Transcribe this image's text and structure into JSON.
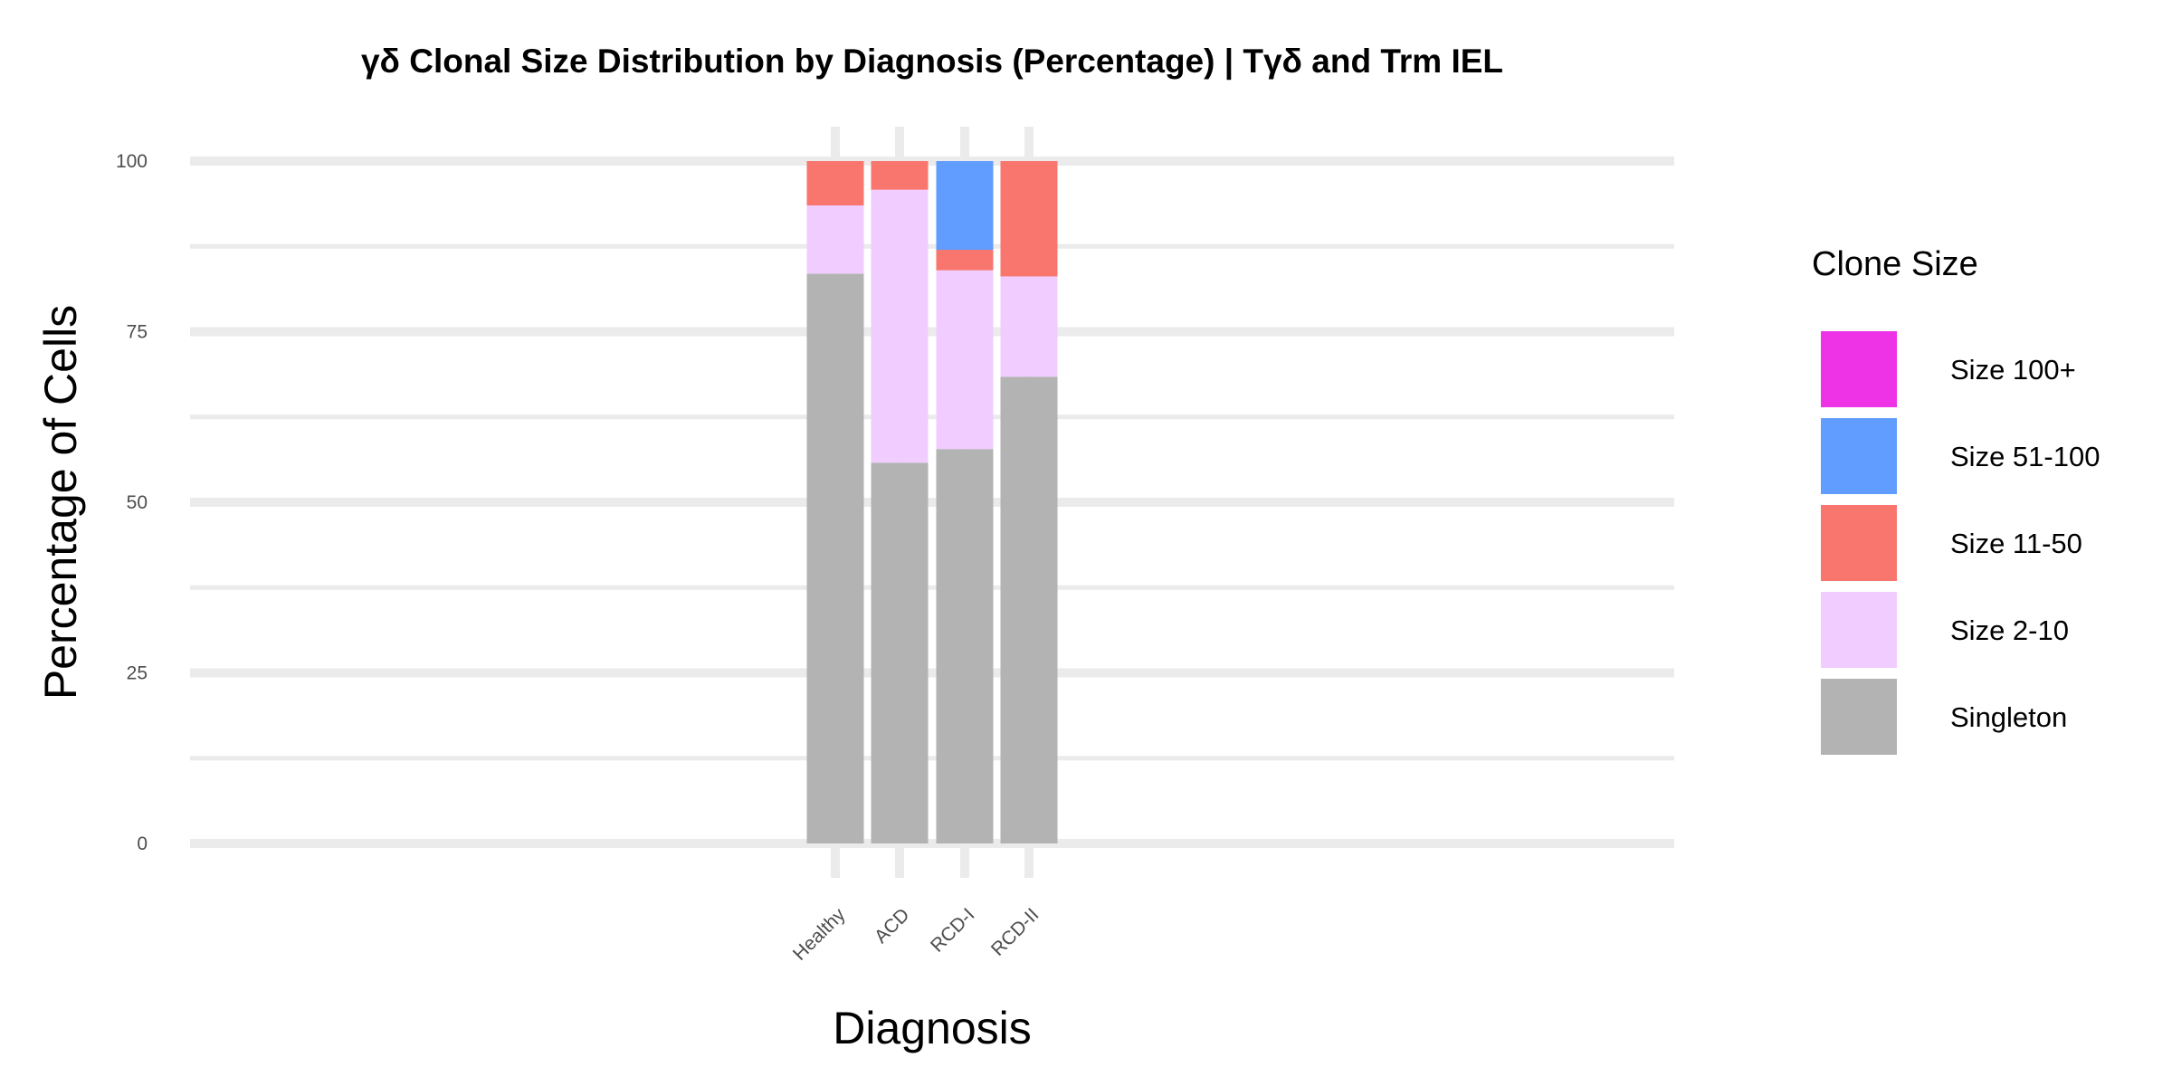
{
  "chart_data": {
    "type": "bar",
    "stacked": true,
    "title": "γδ Clonal Size Distribution by Diagnosis (Percentage) | Tγδ and Trm IEL",
    "xlabel": "Diagnosis",
    "ylabel": "Percentage of Cells",
    "ylim": [
      0,
      100
    ],
    "yticks": [
      0,
      25,
      50,
      75,
      100
    ],
    "grid": true,
    "legend_placement": "right",
    "legend_title": "Clone Size",
    "categories": [
      "Healthy",
      "ACD",
      "RCD-I",
      "RCD-II"
    ],
    "series": [
      {
        "name": "Singleton",
        "color": "#b3b3b3",
        "values": [
          83.5,
          55.8,
          57.8,
          68.4
        ]
      },
      {
        "name": "Size 2-10",
        "color": "#f0ccff",
        "values": [
          10.0,
          40.0,
          26.2,
          14.7
        ]
      },
      {
        "name": "Size 11-50",
        "color": "#f8766d",
        "values": [
          6.5,
          4.2,
          3.0,
          16.9
        ]
      },
      {
        "name": "Size 51-100",
        "color": "#619cff",
        "values": [
          0,
          0,
          13.0,
          0
        ]
      },
      {
        "name": "Size 100+",
        "color": "#ee32e6",
        "values": [
          0,
          0,
          0,
          0
        ]
      }
    ],
    "legend_order": [
      "Size 100+",
      "Size 51-100",
      "Size 11-50",
      "Size 2-10",
      "Singleton"
    ]
  }
}
